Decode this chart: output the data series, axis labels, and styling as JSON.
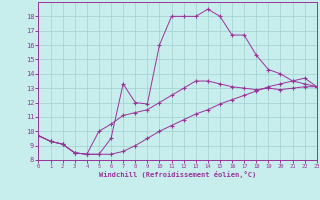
{
  "xlabel": "Windchill (Refroidissement éolien,°C)",
  "bg_color": "#c8eded",
  "line_color": "#993399",
  "grid_color": "#a0d0d0",
  "xlim": [
    0,
    23
  ],
  "ylim": [
    8,
    19
  ],
  "xticks": [
    0,
    1,
    2,
    3,
    4,
    5,
    6,
    7,
    8,
    9,
    10,
    11,
    12,
    13,
    14,
    15,
    16,
    17,
    18,
    19,
    20,
    21,
    22,
    23
  ],
  "yticks": [
    8,
    9,
    10,
    11,
    12,
    13,
    14,
    15,
    16,
    17,
    18
  ],
  "line1_x": [
    0,
    1,
    2,
    3,
    4,
    5,
    6,
    7,
    8,
    9,
    10,
    11,
    12,
    13,
    14,
    15,
    16,
    17,
    18,
    19,
    20,
    21,
    22,
    23
  ],
  "line1_y": [
    9.7,
    9.3,
    9.1,
    8.5,
    8.4,
    8.4,
    8.4,
    8.6,
    9.0,
    9.5,
    10.0,
    10.4,
    10.8,
    11.2,
    11.5,
    11.9,
    12.2,
    12.5,
    12.8,
    13.1,
    13.3,
    13.5,
    13.7,
    13.1
  ],
  "line2_x": [
    0,
    1,
    2,
    3,
    4,
    5,
    6,
    7,
    8,
    9,
    10,
    11,
    12,
    13,
    14,
    15,
    16,
    17,
    18,
    19,
    20,
    21,
    22,
    23
  ],
  "line2_y": [
    9.7,
    9.3,
    9.1,
    8.5,
    8.4,
    10.0,
    10.5,
    11.1,
    11.3,
    11.5,
    12.0,
    12.5,
    13.0,
    13.5,
    13.5,
    13.3,
    13.1,
    13.0,
    12.9,
    13.0,
    12.9,
    13.0,
    13.1,
    13.1
  ],
  "line3_x": [
    0,
    1,
    2,
    3,
    4,
    5,
    6,
    7,
    8,
    9,
    10,
    11,
    12,
    13,
    14,
    15,
    16,
    17,
    18,
    19,
    20,
    21,
    22,
    23
  ],
  "line3_y": [
    9.7,
    9.3,
    9.1,
    8.5,
    8.4,
    8.4,
    9.5,
    13.3,
    12.0,
    11.9,
    16.0,
    18.0,
    18.0,
    18.0,
    18.5,
    18.0,
    16.7,
    16.7,
    15.3,
    14.3,
    14.0,
    13.5,
    13.3,
    13.1
  ]
}
